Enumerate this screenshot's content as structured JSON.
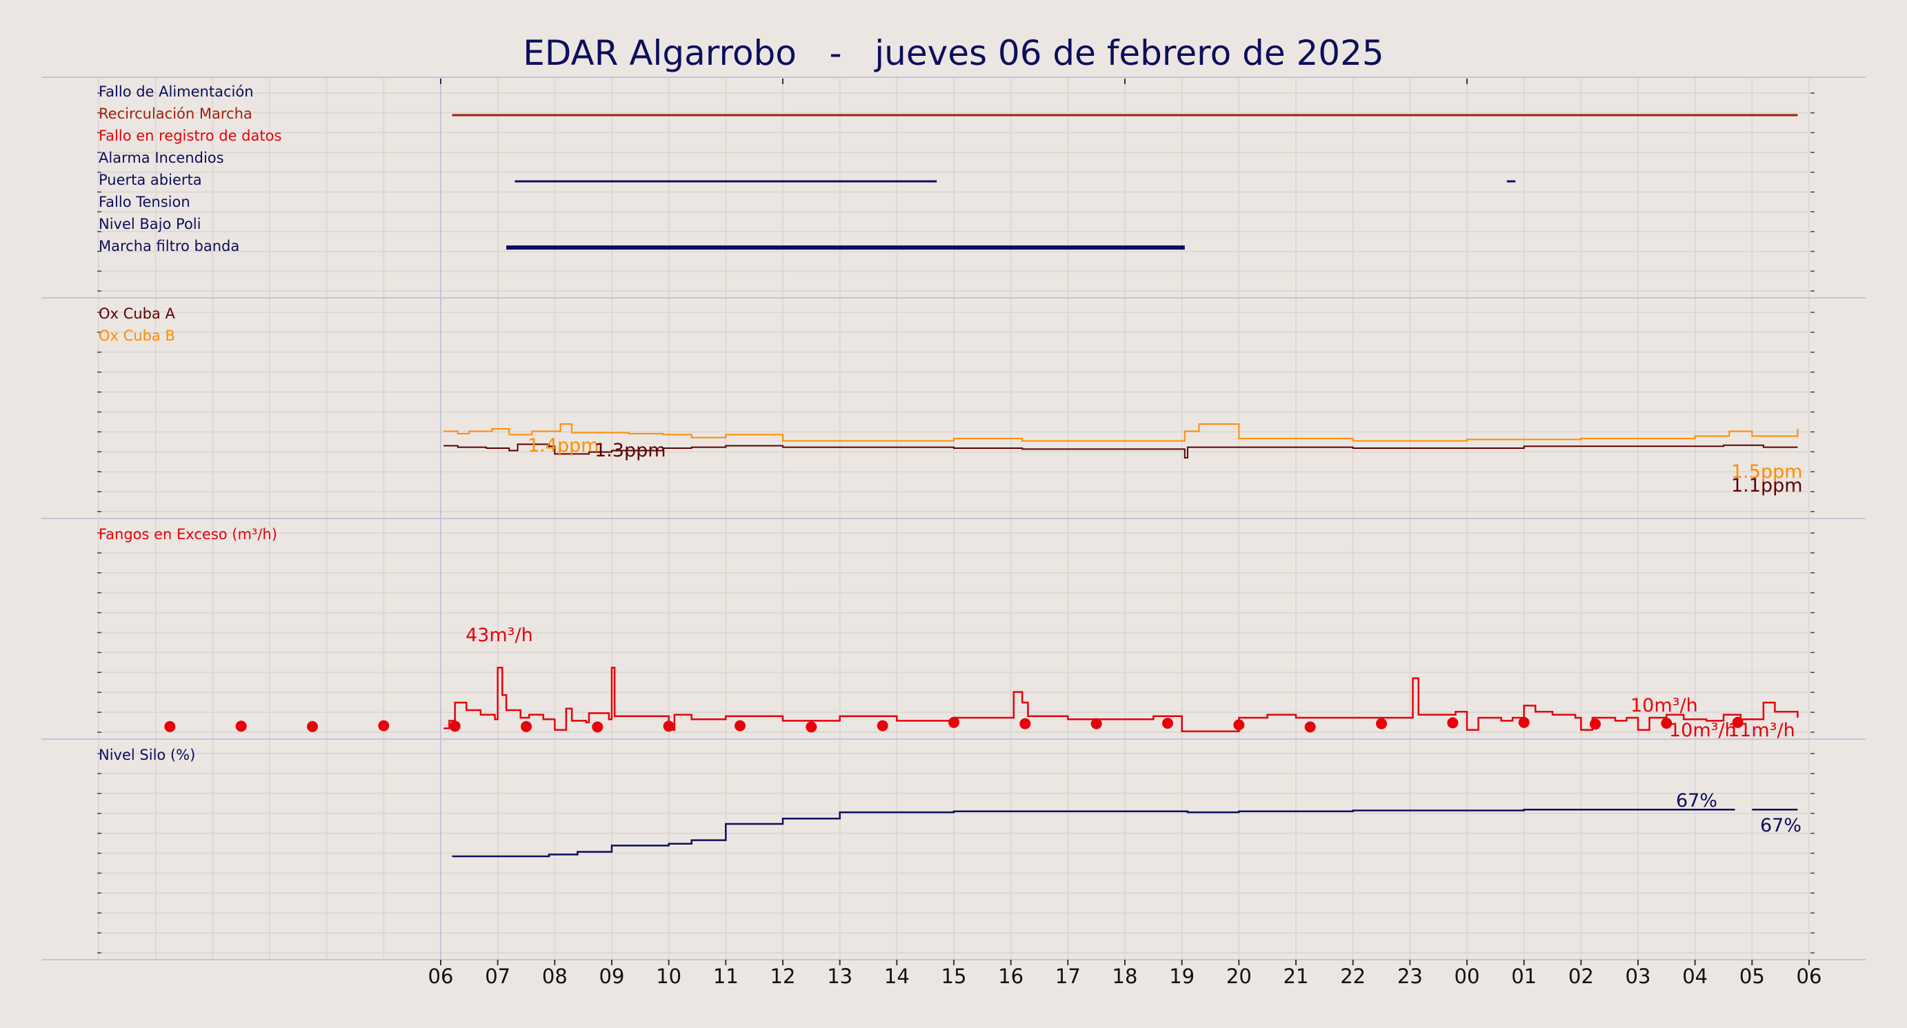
{
  "title": "EDAR Algarrobo   -   jueves 06 de febrero de 2025",
  "colors": {
    "background": "#ebe6e1",
    "grid": "#ddd8d4",
    "divider": "#c5c3dc",
    "navy": "#0d0d5e",
    "brown": "#a02010",
    "red": "#e8000b",
    "darkred": "#5c0000",
    "orange": "#ff8c00"
  },
  "chart_data": [
    {
      "type": "line",
      "panel": "alarmas",
      "x_range": [
        "00:00",
        "36:00"
      ],
      "series": [
        {
          "name": "Fallo de Alimentación",
          "color": "#0d0d5e",
          "segments": []
        },
        {
          "name": "Recirculación Marcha",
          "color": "#a02010",
          "segments": [
            [
              6.2,
              29.8
            ]
          ]
        },
        {
          "name": "Fallo en registro de datos",
          "color": "#e8000b",
          "segments": []
        },
        {
          "name": "Alarma Incendios",
          "color": "#0d0d5e",
          "segments": []
        },
        {
          "name": "Puerta abierta",
          "color": "#0d0d5e",
          "segments": [
            [
              7.3,
              14.7
            ],
            [
              24.7,
              24.85
            ]
          ]
        },
        {
          "name": "Fallo Tension",
          "color": "#0d0d5e",
          "segments": []
        },
        {
          "name": "Nivel Bajo Poli",
          "color": "#0d0d5e",
          "segments": []
        },
        {
          "name": "Marcha filtro banda",
          "color": "#0d0d5e",
          "segments": [
            [
              7.15,
              19.05
            ]
          ]
        }
      ]
    },
    {
      "type": "line",
      "panel": "oxigeno",
      "series": [
        {
          "name": "Ox Cuba A",
          "color": "#5c0000",
          "points": [
            [
              6.05,
              1.15
            ],
            [
              6.3,
              1.12
            ],
            [
              6.8,
              1.1
            ],
            [
              7.2,
              1.05
            ],
            [
              7.35,
              1.18
            ],
            [
              7.9,
              1.14
            ],
            [
              8.0,
              0.98
            ],
            [
              8.6,
              1.02
            ],
            [
              9.0,
              1.05
            ],
            [
              9.9,
              1.1
            ],
            [
              10.4,
              1.12
            ],
            [
              11.0,
              1.15
            ],
            [
              12.0,
              1.12
            ],
            [
              14.0,
              1.12
            ],
            [
              15.0,
              1.1
            ],
            [
              16.2,
              1.08
            ],
            [
              19.0,
              1.08
            ],
            [
              19.05,
              0.9
            ],
            [
              19.1,
              1.12
            ],
            [
              20.0,
              1.12
            ],
            [
              21.0,
              1.12
            ],
            [
              22.0,
              1.1
            ],
            [
              24.0,
              1.1
            ],
            [
              25.0,
              1.14
            ],
            [
              27.0,
              1.14
            ],
            [
              28.5,
              1.16
            ],
            [
              29.2,
              1.12
            ],
            [
              29.8,
              1.12
            ]
          ],
          "labels": [
            "1.3ppm",
            "1.1ppm"
          ]
        },
        {
          "name": "Ox Cuba B",
          "color": "#ff8c00",
          "points": [
            [
              6.05,
              1.45
            ],
            [
              6.3,
              1.4
            ],
            [
              6.5,
              1.45
            ],
            [
              6.9,
              1.5
            ],
            [
              7.2,
              1.38
            ],
            [
              7.6,
              1.45
            ],
            [
              8.1,
              1.6
            ],
            [
              8.3,
              1.42
            ],
            [
              9.3,
              1.4
            ],
            [
              9.9,
              1.38
            ],
            [
              10.4,
              1.32
            ],
            [
              11.0,
              1.38
            ],
            [
              12.0,
              1.25
            ],
            [
              15.0,
              1.3
            ],
            [
              16.2,
              1.25
            ],
            [
              19.0,
              1.25
            ],
            [
              19.05,
              1.45
            ],
            [
              19.3,
              1.6
            ],
            [
              20.0,
              1.3
            ],
            [
              22.0,
              1.25
            ],
            [
              24.0,
              1.28
            ],
            [
              26.0,
              1.3
            ],
            [
              28.0,
              1.35
            ],
            [
              28.6,
              1.45
            ],
            [
              29.0,
              1.35
            ],
            [
              29.5,
              1.35
            ],
            [
              29.8,
              1.5
            ]
          ],
          "labels": [
            "1.4ppm",
            "1.5ppm"
          ]
        }
      ]
    },
    {
      "type": "line",
      "panel": "fangos",
      "series": [
        {
          "name": "Fangos en Exceso (m³/h)",
          "unit": "m³/h",
          "color": "#e8000b",
          "points": [
            [
              6.05,
              3
            ],
            [
              6.15,
              8
            ],
            [
              6.25,
              20
            ],
            [
              6.45,
              15
            ],
            [
              6.7,
              12
            ],
            [
              6.95,
              9
            ],
            [
              7.0,
              43
            ],
            [
              7.08,
              25
            ],
            [
              7.15,
              15
            ],
            [
              7.4,
              10
            ],
            [
              7.55,
              12
            ],
            [
              7.8,
              9
            ],
            [
              8.0,
              2
            ],
            [
              8.2,
              16
            ],
            [
              8.3,
              8
            ],
            [
              8.55,
              7
            ],
            [
              8.6,
              13
            ],
            [
              8.95,
              9
            ],
            [
              9.0,
              43
            ],
            [
              9.05,
              11
            ],
            [
              9.9,
              11
            ],
            [
              10.0,
              2
            ],
            [
              10.1,
              12
            ],
            [
              10.4,
              9
            ],
            [
              11.0,
              11
            ],
            [
              12.0,
              8
            ],
            [
              13.0,
              11
            ],
            [
              14.0,
              8
            ],
            [
              15.0,
              10
            ],
            [
              16.0,
              10
            ],
            [
              16.05,
              27
            ],
            [
              16.2,
              20
            ],
            [
              16.3,
              11
            ],
            [
              17.0,
              9
            ],
            [
              18.0,
              9
            ],
            [
              18.5,
              11
            ],
            [
              19.0,
              1
            ],
            [
              20.0,
              10
            ],
            [
              20.5,
              12
            ],
            [
              21.0,
              10
            ],
            [
              22.0,
              10
            ],
            [
              23.0,
              10
            ],
            [
              23.05,
              36
            ],
            [
              23.15,
              12
            ],
            [
              23.8,
              14
            ],
            [
              24.0,
              2
            ],
            [
              24.2,
              10
            ],
            [
              24.6,
              8
            ],
            [
              24.8,
              10
            ],
            [
              25.0,
              18
            ],
            [
              25.2,
              14
            ],
            [
              25.5,
              12
            ],
            [
              25.9,
              10
            ],
            [
              26.0,
              2
            ],
            [
              26.2,
              10
            ],
            [
              26.6,
              8
            ],
            [
              26.8,
              10
            ],
            [
              27.0,
              2
            ],
            [
              27.2,
              10
            ],
            [
              27.5,
              12
            ],
            [
              27.8,
              9
            ],
            [
              28.2,
              8
            ],
            [
              28.5,
              12
            ],
            [
              28.8,
              9
            ],
            [
              29.2,
              20
            ],
            [
              29.4,
              14
            ],
            [
              29.8,
              10
            ]
          ],
          "markers": [
            [
              1.25,
              6
            ],
            [
              2.5,
              6.5
            ],
            [
              3.75,
              6
            ],
            [
              5.0,
              7
            ],
            [
              6.25,
              6.5
            ],
            [
              7.5,
              6
            ],
            [
              8.75,
              5.5
            ],
            [
              10.0,
              6.5
            ],
            [
              11.25,
              7
            ],
            [
              12.5,
              5.5
            ],
            [
              13.75,
              7
            ],
            [
              15.0,
              11
            ],
            [
              16.25,
              9.5
            ],
            [
              17.5,
              9.5
            ],
            [
              18.75,
              10
            ],
            [
              20.0,
              8
            ],
            [
              21.25,
              5.5
            ],
            [
              22.5,
              9.5
            ],
            [
              23.75,
              10.5
            ],
            [
              25.0,
              11
            ],
            [
              26.25,
              9
            ],
            [
              27.5,
              10
            ],
            [
              28.75,
              11
            ]
          ],
          "labels": [
            "43m³/h",
            "10m³/h",
            "10m³/h",
            "11m³/h"
          ]
        }
      ]
    },
    {
      "type": "line",
      "panel": "silo",
      "series": [
        {
          "name": "Nivel Silo (%)",
          "unit": "%",
          "color": "#0d0d5e",
          "points": [
            [
              6.2,
              47
            ],
            [
              7.5,
              47
            ],
            [
              7.9,
              48
            ],
            [
              8.4,
              49.5
            ],
            [
              9.0,
              50
            ],
            [
              9.0,
              53
            ],
            [
              10.0,
              54
            ],
            [
              10.4,
              56
            ],
            [
              11.0,
              56
            ],
            [
              11.0,
              62
            ],
            [
              12.0,
              62
            ],
            [
              12.0,
              65
            ],
            [
              13.0,
              65
            ],
            [
              13.0,
              68.5
            ],
            [
              14.0,
              68.5
            ],
            [
              15.0,
              69
            ],
            [
              16.0,
              69
            ],
            [
              19.0,
              69
            ],
            [
              19.1,
              68.5
            ],
            [
              20.0,
              69
            ],
            [
              22.0,
              69.5
            ],
            [
              24.0,
              69.5
            ],
            [
              25.0,
              70
            ],
            [
              26.0,
              70
            ],
            [
              27.0,
              70
            ],
            [
              28.0,
              70
            ],
            [
              28.7,
              70
            ],
            [
              28.8,
              null
            ],
            [
              29.0,
              70
            ],
            [
              29.8,
              70
            ]
          ],
          "labels": [
            "67%",
            "67%"
          ]
        }
      ]
    }
  ],
  "x_axis": {
    "ticks": [
      "06",
      "07",
      "08",
      "09",
      "10",
      "11",
      "12",
      "13",
      "14",
      "15",
      "16",
      "17",
      "18",
      "19",
      "20",
      "21",
      "22",
      "23",
      "00",
      "01",
      "02",
      "03",
      "04",
      "05",
      "06"
    ]
  }
}
